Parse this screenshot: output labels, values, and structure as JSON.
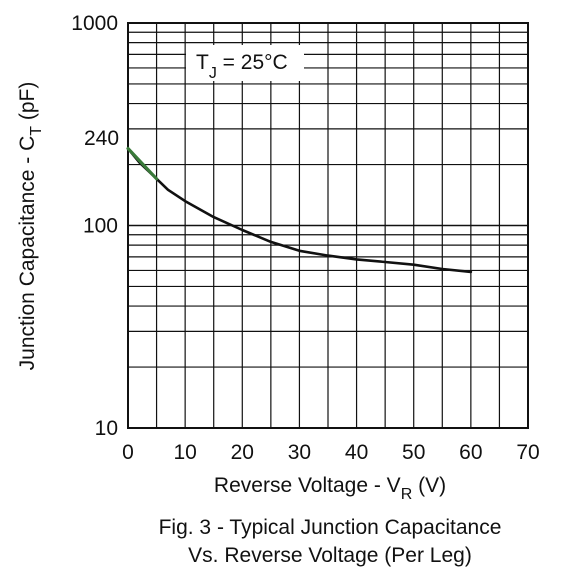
{
  "chart_data": {
    "type": "line",
    "xlabel": {
      "main": "Reverse Voltage - V",
      "sub": "R",
      "unit": " (V)"
    },
    "ylabel": {
      "main": "Junction Capacitance - C",
      "sub": "T",
      "unit": " (pF)"
    },
    "xlim": [
      0,
      70
    ],
    "ylim": [
      10,
      1000
    ],
    "yscale": "log",
    "grid": true,
    "x_ticks": [
      "0",
      "10",
      "20",
      "30",
      "40",
      "50",
      "60",
      "70"
    ],
    "y_ticks": [
      "10",
      "100",
      "1000"
    ],
    "annotations": {
      "condition": {
        "main": "T",
        "sub": "J",
        "rest": " = 25°C"
      },
      "highlight_value": "240",
      "highlight_color": "#3a7a3a"
    },
    "series": [
      {
        "color": "#111111",
        "x": [
          0,
          2,
          5,
          7,
          10,
          15,
          20,
          25,
          30,
          35,
          40,
          45,
          50,
          55,
          60
        ],
        "y": [
          240,
          205,
          170,
          150,
          132,
          110,
          95,
          83,
          75,
          71,
          68,
          66,
          64,
          61,
          59
        ]
      }
    ],
    "caption": [
      "Fig. 3 - Typical Junction Capacitance",
      "Vs.  Reverse  Voltage (Per Leg)"
    ]
  }
}
